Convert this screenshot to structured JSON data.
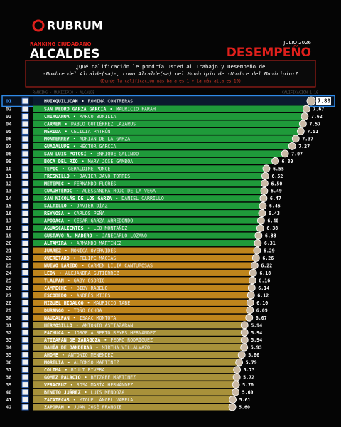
{
  "header": {
    "brand": "RUBRUM",
    "kicker": "RANKING CIUDADANO",
    "title": "ALCALDES",
    "date": "JULIO 2026",
    "title_right": "DESEMPEÑO"
  },
  "question": {
    "line1": "¿Qué calificación le pondría usted al Trabajo y Desempeño de",
    "line2": "-Nombre del Alcalde(sa)-, como Alcalde(sa) del Municipio de -Nombre del Municipio-?",
    "note": "(Donde la calificación más baja es 1 y la más alta es 10)"
  },
  "columns": {
    "left": "RANKING · MUNICIPIO · ALCALDE",
    "right": "CALIFICACIÓN 1-10"
  },
  "chart_data": {
    "type": "bar",
    "ranks": [
      "01",
      "02",
      "03",
      "04",
      "05",
      "06",
      "07",
      "08",
      "09",
      "10",
      "11",
      "12",
      "13",
      "14",
      "15",
      "16",
      "17",
      "18",
      "19",
      "20",
      "21",
      "22",
      "23",
      "24",
      "25",
      "26",
      "27",
      "28",
      "29",
      "30",
      "31",
      "32",
      "33",
      "34",
      "35",
      "36",
      "37",
      "38",
      "39",
      "40",
      "41",
      "42"
    ],
    "categories": [
      "HUIXQUILUCAN",
      "SAN PEDRO GARZA GARCÍA",
      "CHIHUAHUA",
      "CARMEN",
      "MÉRIDA",
      "MONTERREY",
      "GUADALUPE",
      "SAN LUIS POTOSÍ",
      "BOCA DEL RÍO",
      "TEPIC",
      "FRESNILLO",
      "METEPEC",
      "CUAUHTÉMOC",
      "SAN NICOLÁS DE LOS GARZA",
      "SALTILLO",
      "REYNOSA",
      "APODACA",
      "AGUASCALIENTES",
      "GUSTAVO A. MADERO",
      "ALTAMIRA",
      "JUÁREZ",
      "QUERÉTARO",
      "NUEVO LAREDO",
      "LEÓN",
      "TLALPAN",
      "CAMPECHE",
      "ESCOBEDO",
      "MIGUEL HIDALGO",
      "DURANGO",
      "NAUCALPAN",
      "HERMOSILLO",
      "PACHUCA",
      "ATIZAPÁN DE ZARAGOZA",
      "BAHÍA DE BANDERAS",
      "AHOME",
      "MORELIA",
      "COLIMA",
      "GÓMEZ PALACIO",
      "VERACRUZ",
      "BENITO JUÁREZ",
      "ZACATECAS",
      "ZAPOPAN"
    ],
    "mayors": [
      "ROMINA CONTRERAS",
      "MAURICIO FARAH",
      "MARCO BONILLA",
      "PABLO GUTIÉRREZ LAZARUS",
      "CECILIA PATRÓN",
      "ADRIÁN DE LA GARZA",
      "HÉCTOR GARCÍA",
      "ENRIQUE GALINDO",
      "MARY JOSE GAMBOA",
      "GERALDINE PONCE",
      "JAVIER JAVO TORRES",
      "FERNANDO FLORES",
      "ALESSANDRA ROJO DE LA VEGA",
      "DANIEL CARRILLO",
      "JAVIER DÍAZ",
      "CARLOS PEÑA",
      "CÉSAR GARZA ARREDONDO",
      "LEO MONTAÑEZ",
      "JANECARLO LOZANO",
      "ARMANDO MARTÍNEZ",
      "MÓNICA OYERVIDES",
      "FELIPE MACÍAS",
      "CARMEN LILIA CANTUROSAS",
      "ALEJANDRA GUTIÉRREZ",
      "GABY OSORIO",
      "BIBY RABELO",
      "ANDRÉS MIJES",
      "MAURICIO TABE",
      "TOÑO OCHOA",
      "ISAAC MONTOYA",
      "ANTONIO ASTIAZARÁN",
      "JORGE ALBERTO REYES HERNÁNDEZ",
      "PEDRO RODRÍGUEZ",
      "MIRTHA VILLALVAZO",
      "ANTONIO MENÉNDEZ",
      "ALFONSO MARTÍNEZ",
      "RIULT RIVERA",
      "BETZABÉ MARTÍNEZ",
      "ROSA MARÍA HERNÁNDEZ",
      "LUIS MENDOZA",
      "MIGUEL ÁNGEL VARELA",
      "JUAN JOSÉ FRANGIE"
    ],
    "values": [
      7.8,
      7.67,
      7.62,
      7.57,
      7.51,
      7.37,
      7.27,
      7.07,
      6.8,
      6.55,
      6.52,
      6.5,
      6.49,
      6.47,
      6.45,
      6.43,
      6.4,
      6.38,
      6.33,
      6.31,
      6.29,
      6.26,
      6.22,
      6.18,
      6.16,
      6.14,
      6.12,
      6.1,
      6.09,
      6.07,
      5.94,
      5.94,
      5.94,
      5.93,
      5.86,
      5.79,
      5.73,
      5.72,
      5.7,
      5.69,
      5.61,
      5.6
    ],
    "value_labels": [
      "7.80",
      "7.67",
      "7.62",
      "7.57",
      "7.51",
      "7.37",
      "7.27",
      "7.07",
      "6.80",
      "6.55",
      "6.52",
      "6.50",
      "6.49",
      "6.47",
      "6.45",
      "6.43",
      "6.40",
      "6.38",
      "6.33",
      "6.31",
      "6.29",
      "6.26",
      "6.22",
      "6.18",
      "6.16",
      "6.14",
      "6.12",
      "6.10",
      "6.09",
      "6.07",
      "5.94",
      "5.94",
      "5.94",
      "5.93",
      "5.86",
      "5.79",
      "5.73",
      "5.72",
      "5.70",
      "5.69",
      "5.61",
      "5.60"
    ],
    "colors": [
      "#0b1a2e",
      "#1f9a3a",
      "#1f9a3a",
      "#1f9a3a",
      "#1f9a3a",
      "#1f9a3a",
      "#1f9a3a",
      "#1f9a3a",
      "#1f9a3a",
      "#1f9a3a",
      "#1f9a3a",
      "#1f9a3a",
      "#1f9a3a",
      "#1f9a3a",
      "#1f9a3a",
      "#1f9a3a",
      "#1f9a3a",
      "#1f9a3a",
      "#1f9a3a",
      "#1f9a3a",
      "#bf851c",
      "#bf851c",
      "#bf851c",
      "#bf851c",
      "#bf851c",
      "#bf851c",
      "#bf851c",
      "#bf851c",
      "#bf851c",
      "#bf851c",
      "#a8913a",
      "#a8913a",
      "#a8913a",
      "#a8913a",
      "#a8913a",
      "#a8913a",
      "#a8913a",
      "#a8913a",
      "#a8913a",
      "#a8913a",
      "#a8913a",
      "#a8913a"
    ],
    "xlim": [
      0,
      8
    ]
  }
}
